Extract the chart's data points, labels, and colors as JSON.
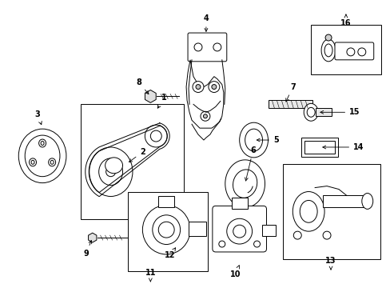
{
  "background_color": "#ffffff",
  "fig_width": 4.89,
  "fig_height": 3.6,
  "dpi": 100,
  "lw": 0.7
}
